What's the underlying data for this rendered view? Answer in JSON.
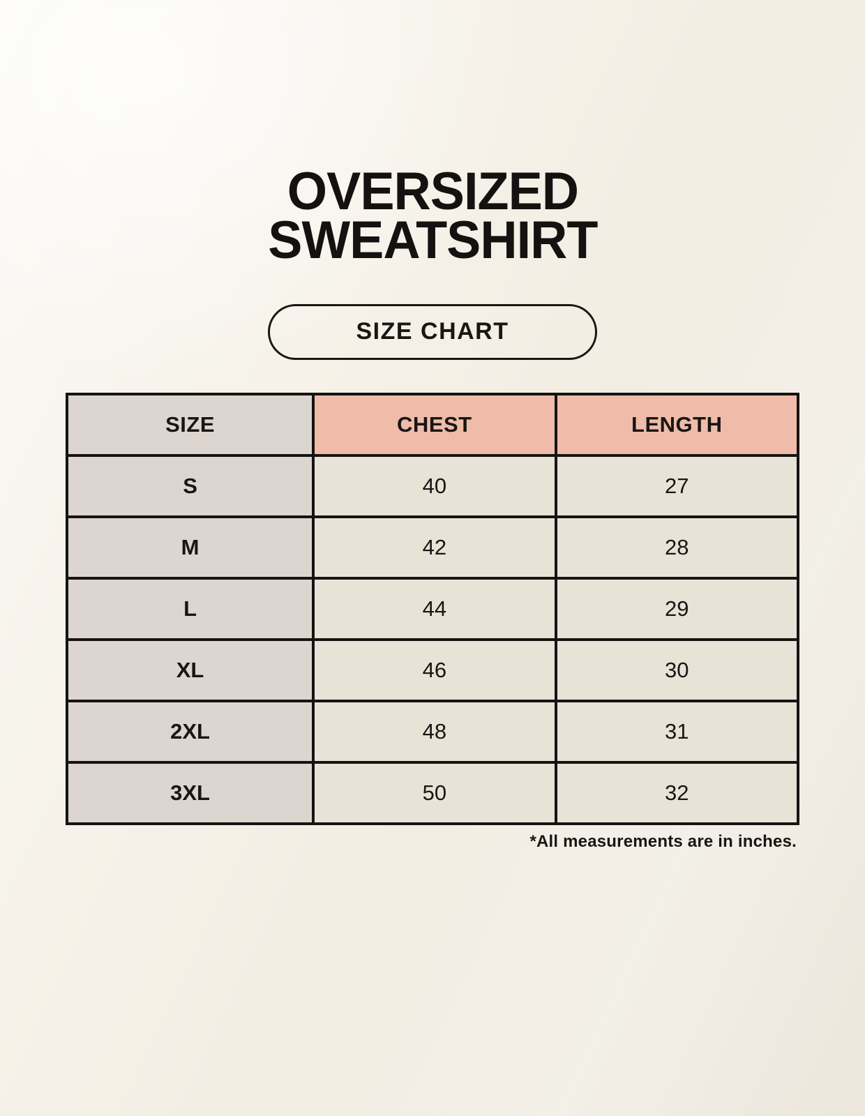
{
  "page": {
    "title_line1": "OVERSIZED",
    "title_line2": "SWEATSHIRT",
    "badge_label": "SIZE CHART",
    "footnote": "*All measurements are in inches."
  },
  "colors": {
    "background_cream": "#F6F2E9",
    "text_black": "#181614",
    "border_black": "#161412",
    "header_salmon": "#EFBCAA",
    "size_column_gray": "#DDD5CF",
    "value_cell_cream": "#E9E2D6"
  },
  "chart_data": {
    "type": "table",
    "title": "Oversized Sweatshirt Size Chart",
    "columns": [
      "SIZE",
      "CHEST",
      "LENGTH"
    ],
    "rows": [
      {
        "size": "S",
        "chest": "40",
        "length": "27"
      },
      {
        "size": "M",
        "chest": "42",
        "length": "28"
      },
      {
        "size": "L",
        "chest": "44",
        "length": "29"
      },
      {
        "size": "XL",
        "chest": "46",
        "length": "30"
      },
      {
        "size": "2XL",
        "chest": "48",
        "length": "31"
      },
      {
        "size": "3XL",
        "chest": "50",
        "length": "32"
      }
    ],
    "units_note": "*All measurements are in inches.",
    "layout": {
      "header_fill": [
        "gray",
        "salmon",
        "salmon"
      ],
      "grid": "on"
    }
  }
}
